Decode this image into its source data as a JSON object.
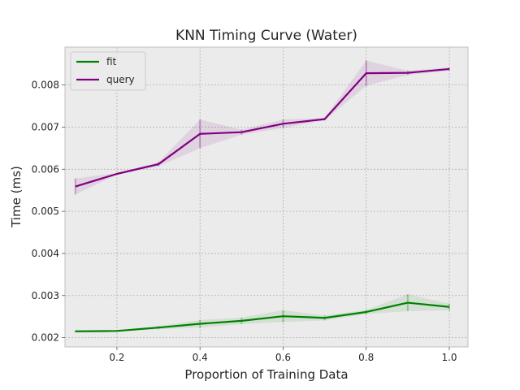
{
  "chart_data": {
    "type": "line",
    "title": "KNN Timing Curve (Water)",
    "xlabel": "Proportion of Training Data",
    "ylabel": "Time (ms)",
    "x": [
      0.1,
      0.2,
      0.3,
      0.4,
      0.5,
      0.6,
      0.7,
      0.8,
      0.9,
      1.0
    ],
    "xlim": [
      0.075,
      1.045
    ],
    "ylim": [
      0.00178,
      0.0089
    ],
    "xticks": [
      0.2,
      0.4,
      0.6,
      0.8,
      1.0
    ],
    "xtick_labels": [
      "0.2",
      "0.4",
      "0.6",
      "0.8",
      "1.0"
    ],
    "yticks": [
      0.002,
      0.003,
      0.004,
      0.005,
      0.006,
      0.007,
      0.008
    ],
    "ytick_labels": [
      "0.002",
      "0.003",
      "0.004",
      "0.005",
      "0.006",
      "0.007",
      "0.008"
    ],
    "grid": true,
    "legend_position": "top-left",
    "series": [
      {
        "name": "fit",
        "color": "#008000",
        "values": [
          0.00215,
          0.00216,
          0.00224,
          0.00233,
          0.0024,
          0.00251,
          0.00247,
          0.00261,
          0.00283,
          0.00273
        ],
        "std": [
          3e-05,
          2e-05,
          4e-05,
          9e-05,
          8e-05,
          0.00014,
          6e-05,
          5e-05,
          0.0002,
          8e-05
        ]
      },
      {
        "name": "query",
        "color": "#800080",
        "values": [
          0.00559,
          0.00589,
          0.00612,
          0.00684,
          0.00688,
          0.00708,
          0.00719,
          0.00828,
          0.00829,
          0.00838
        ],
        "std": [
          0.00019,
          2e-05,
          5e-05,
          0.00034,
          6e-05,
          0.0001,
          3e-05,
          0.0003,
          5e-05,
          4e-05
        ]
      }
    ]
  }
}
